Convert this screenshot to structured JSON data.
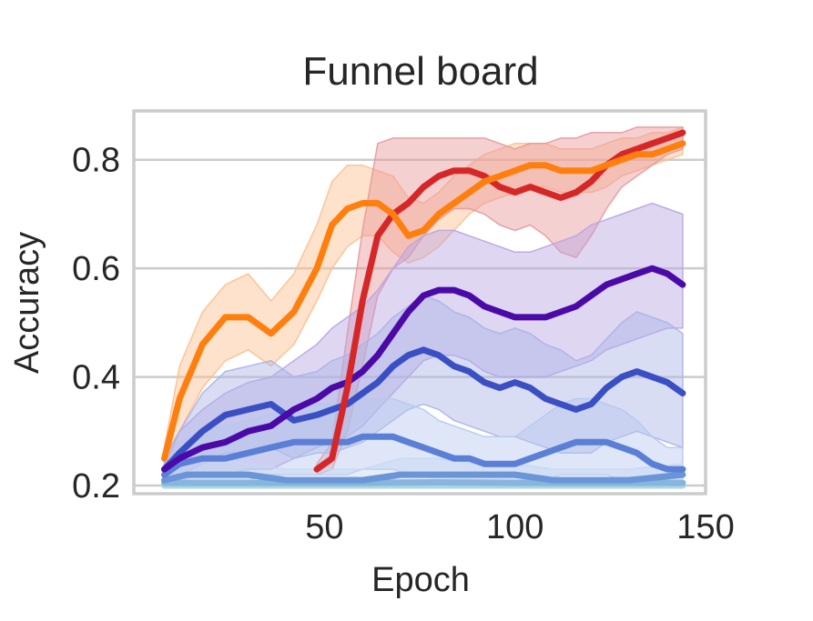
{
  "chart_data": {
    "type": "line",
    "title": "Funnel board",
    "xlabel": "Epoch",
    "ylabel": "Accuracy",
    "xlim": [
      0,
      150
    ],
    "ylim": [
      0.185,
      0.89
    ],
    "xticks": [
      50,
      100,
      150
    ],
    "yticks": [
      0.2,
      0.4,
      0.6,
      0.8
    ],
    "ytick_labels": [
      "0.2",
      "0.4",
      "0.6",
      "0.8"
    ],
    "grid": "horizontal",
    "legend": "none",
    "series": [
      {
        "color": "#ff7f0e",
        "band_color": "#fdbf8f",
        "x": [
          8,
          12,
          18,
          24,
          30,
          36,
          42,
          48,
          52,
          56,
          60,
          64,
          68,
          72,
          76,
          80,
          84,
          88,
          92,
          96,
          100,
          104,
          108,
          112,
          116,
          120,
          124,
          128,
          132,
          136,
          140,
          144
        ],
        "y": [
          0.25,
          0.36,
          0.46,
          0.51,
          0.51,
          0.48,
          0.52,
          0.6,
          0.68,
          0.71,
          0.72,
          0.72,
          0.7,
          0.66,
          0.67,
          0.7,
          0.72,
          0.74,
          0.76,
          0.77,
          0.78,
          0.79,
          0.79,
          0.78,
          0.78,
          0.78,
          0.79,
          0.8,
          0.81,
          0.81,
          0.82,
          0.83
        ],
        "lower": [
          0.23,
          0.3,
          0.38,
          0.43,
          0.45,
          0.42,
          0.46,
          0.54,
          0.6,
          0.64,
          0.66,
          0.66,
          0.63,
          0.61,
          0.62,
          0.64,
          0.67,
          0.7,
          0.72,
          0.73,
          0.74,
          0.75,
          0.75,
          0.74,
          0.74,
          0.74,
          0.75,
          0.77,
          0.78,
          0.79,
          0.8,
          0.81
        ],
        "upper": [
          0.27,
          0.42,
          0.52,
          0.57,
          0.59,
          0.54,
          0.59,
          0.68,
          0.76,
          0.79,
          0.79,
          0.78,
          0.77,
          0.73,
          0.72,
          0.74,
          0.77,
          0.79,
          0.81,
          0.82,
          0.83,
          0.83,
          0.83,
          0.82,
          0.82,
          0.82,
          0.83,
          0.84,
          0.84,
          0.85,
          0.85,
          0.86
        ]
      },
      {
        "color": "#d62728",
        "band_color": "#e8979a",
        "x": [
          48,
          52,
          56,
          60,
          64,
          68,
          72,
          76,
          80,
          84,
          88,
          92,
          96,
          100,
          104,
          108,
          112,
          116,
          120,
          124,
          128,
          132,
          136,
          140,
          144
        ],
        "y": [
          0.23,
          0.25,
          0.38,
          0.54,
          0.66,
          0.7,
          0.72,
          0.75,
          0.77,
          0.78,
          0.78,
          0.77,
          0.75,
          0.74,
          0.75,
          0.74,
          0.73,
          0.74,
          0.76,
          0.79,
          0.81,
          0.82,
          0.83,
          0.84,
          0.85
        ],
        "lower": [
          0.22,
          0.23,
          0.3,
          0.42,
          0.55,
          0.6,
          0.62,
          0.66,
          0.69,
          0.71,
          0.71,
          0.7,
          0.68,
          0.67,
          0.68,
          0.66,
          0.63,
          0.62,
          0.66,
          0.71,
          0.75,
          0.77,
          0.79,
          0.81,
          0.82
        ],
        "upper": [
          0.24,
          0.28,
          0.48,
          0.67,
          0.83,
          0.84,
          0.84,
          0.84,
          0.84,
          0.84,
          0.84,
          0.84,
          0.83,
          0.82,
          0.83,
          0.83,
          0.84,
          0.84,
          0.85,
          0.85,
          0.85,
          0.86,
          0.86,
          0.86,
          0.86
        ]
      },
      {
        "color": "#4b0aa8",
        "band_color": "#b9a3e3",
        "x": [
          8,
          12,
          18,
          24,
          30,
          36,
          42,
          48,
          52,
          56,
          60,
          64,
          68,
          72,
          76,
          80,
          84,
          88,
          92,
          96,
          100,
          104,
          108,
          112,
          116,
          120,
          124,
          128,
          132,
          136,
          140,
          144
        ],
        "y": [
          0.23,
          0.25,
          0.27,
          0.28,
          0.3,
          0.31,
          0.34,
          0.36,
          0.38,
          0.39,
          0.41,
          0.44,
          0.48,
          0.52,
          0.55,
          0.56,
          0.56,
          0.55,
          0.53,
          0.52,
          0.51,
          0.51,
          0.51,
          0.52,
          0.53,
          0.55,
          0.57,
          0.58,
          0.59,
          0.6,
          0.59,
          0.57
        ],
        "lower": [
          0.21,
          0.21,
          0.22,
          0.22,
          0.23,
          0.23,
          0.25,
          0.27,
          0.28,
          0.29,
          0.31,
          0.34,
          0.37,
          0.4,
          0.43,
          0.44,
          0.44,
          0.43,
          0.41,
          0.4,
          0.4,
          0.4,
          0.4,
          0.41,
          0.42,
          0.43,
          0.45,
          0.46,
          0.47,
          0.48,
          0.49,
          0.49
        ],
        "upper": [
          0.25,
          0.3,
          0.34,
          0.37,
          0.39,
          0.4,
          0.43,
          0.46,
          0.49,
          0.51,
          0.53,
          0.56,
          0.6,
          0.64,
          0.66,
          0.67,
          0.67,
          0.66,
          0.65,
          0.64,
          0.63,
          0.63,
          0.64,
          0.65,
          0.66,
          0.68,
          0.69,
          0.7,
          0.71,
          0.72,
          0.71,
          0.7
        ]
      },
      {
        "color": "#3b4fc4",
        "band_color": "#aab3e6",
        "x": [
          8,
          12,
          18,
          24,
          30,
          36,
          42,
          48,
          52,
          56,
          60,
          64,
          68,
          72,
          76,
          80,
          84,
          88,
          92,
          96,
          100,
          104,
          108,
          112,
          116,
          120,
          124,
          128,
          132,
          136,
          140,
          144
        ],
        "y": [
          0.23,
          0.26,
          0.3,
          0.33,
          0.34,
          0.35,
          0.32,
          0.33,
          0.34,
          0.35,
          0.37,
          0.39,
          0.42,
          0.44,
          0.45,
          0.44,
          0.42,
          0.41,
          0.39,
          0.38,
          0.39,
          0.38,
          0.36,
          0.35,
          0.34,
          0.35,
          0.38,
          0.4,
          0.41,
          0.4,
          0.39,
          0.37
        ],
        "lower": [
          0.21,
          0.22,
          0.24,
          0.26,
          0.26,
          0.27,
          0.25,
          0.26,
          0.26,
          0.27,
          0.28,
          0.3,
          0.32,
          0.34,
          0.35,
          0.34,
          0.32,
          0.31,
          0.3,
          0.29,
          0.29,
          0.28,
          0.27,
          0.26,
          0.26,
          0.26,
          0.28,
          0.29,
          0.3,
          0.29,
          0.28,
          0.27
        ],
        "upper": [
          0.25,
          0.3,
          0.37,
          0.41,
          0.42,
          0.43,
          0.4,
          0.41,
          0.43,
          0.44,
          0.46,
          0.48,
          0.51,
          0.53,
          0.55,
          0.54,
          0.52,
          0.51,
          0.49,
          0.48,
          0.49,
          0.48,
          0.46,
          0.45,
          0.43,
          0.44,
          0.47,
          0.5,
          0.52,
          0.51,
          0.5,
          0.48
        ]
      },
      {
        "color": "#5b7fd6",
        "band_color": "#b6c8ee",
        "x": [
          8,
          12,
          18,
          24,
          30,
          36,
          42,
          48,
          52,
          56,
          60,
          64,
          68,
          72,
          76,
          80,
          84,
          88,
          92,
          96,
          100,
          104,
          108,
          112,
          116,
          120,
          124,
          128,
          132,
          136,
          140,
          144
        ],
        "y": [
          0.22,
          0.24,
          0.25,
          0.25,
          0.26,
          0.27,
          0.28,
          0.28,
          0.28,
          0.28,
          0.29,
          0.29,
          0.29,
          0.28,
          0.27,
          0.26,
          0.25,
          0.25,
          0.24,
          0.24,
          0.24,
          0.25,
          0.26,
          0.27,
          0.28,
          0.28,
          0.28,
          0.27,
          0.26,
          0.24,
          0.23,
          0.23
        ],
        "lower": [
          0.2,
          0.21,
          0.21,
          0.21,
          0.21,
          0.22,
          0.22,
          0.22,
          0.22,
          0.22,
          0.23,
          0.23,
          0.23,
          0.22,
          0.22,
          0.21,
          0.21,
          0.21,
          0.21,
          0.21,
          0.21,
          0.21,
          0.21,
          0.22,
          0.22,
          0.22,
          0.22,
          0.21,
          0.21,
          0.21,
          0.2,
          0.2
        ],
        "upper": [
          0.24,
          0.28,
          0.3,
          0.31,
          0.32,
          0.33,
          0.34,
          0.35,
          0.35,
          0.35,
          0.36,
          0.36,
          0.36,
          0.35,
          0.34,
          0.32,
          0.31,
          0.3,
          0.29,
          0.29,
          0.29,
          0.31,
          0.33,
          0.35,
          0.36,
          0.36,
          0.35,
          0.34,
          0.32,
          0.29,
          0.27,
          0.27
        ]
      },
      {
        "color": "#6a96d8",
        "band_color": "#c5d8f1",
        "x": [
          8,
          14,
          20,
          30,
          40,
          50,
          60,
          70,
          80,
          90,
          100,
          110,
          120,
          130,
          144
        ],
        "y": [
          0.21,
          0.22,
          0.22,
          0.22,
          0.21,
          0.21,
          0.21,
          0.22,
          0.22,
          0.22,
          0.22,
          0.21,
          0.21,
          0.21,
          0.22
        ],
        "lower": [
          0.2,
          0.2,
          0.2,
          0.2,
          0.2,
          0.2,
          0.2,
          0.2,
          0.2,
          0.2,
          0.2,
          0.2,
          0.2,
          0.2,
          0.2
        ],
        "upper": [
          0.23,
          0.25,
          0.25,
          0.24,
          0.23,
          0.23,
          0.23,
          0.25,
          0.25,
          0.24,
          0.24,
          0.23,
          0.23,
          0.23,
          0.24
        ]
      },
      {
        "color": "#89b4de",
        "band_color": "#d2e3f3",
        "x": [
          8,
          20,
          40,
          60,
          80,
          100,
          120,
          144
        ],
        "y": [
          0.205,
          0.205,
          0.205,
          0.205,
          0.206,
          0.205,
          0.205,
          0.205
        ],
        "lower": [
          0.2,
          0.2,
          0.2,
          0.2,
          0.2,
          0.2,
          0.2,
          0.2
        ],
        "upper": [
          0.21,
          0.21,
          0.21,
          0.21,
          0.212,
          0.21,
          0.21,
          0.21
        ]
      },
      {
        "color": "#a9d8e2",
        "band_color": "#dbeef2",
        "x": [
          8,
          40,
          80,
          120,
          144
        ],
        "y": [
          0.2,
          0.2,
          0.2,
          0.2,
          0.2
        ],
        "lower": [
          0.199,
          0.199,
          0.199,
          0.199,
          0.199
        ],
        "upper": [
          0.202,
          0.202,
          0.202,
          0.202,
          0.202
        ]
      }
    ]
  }
}
